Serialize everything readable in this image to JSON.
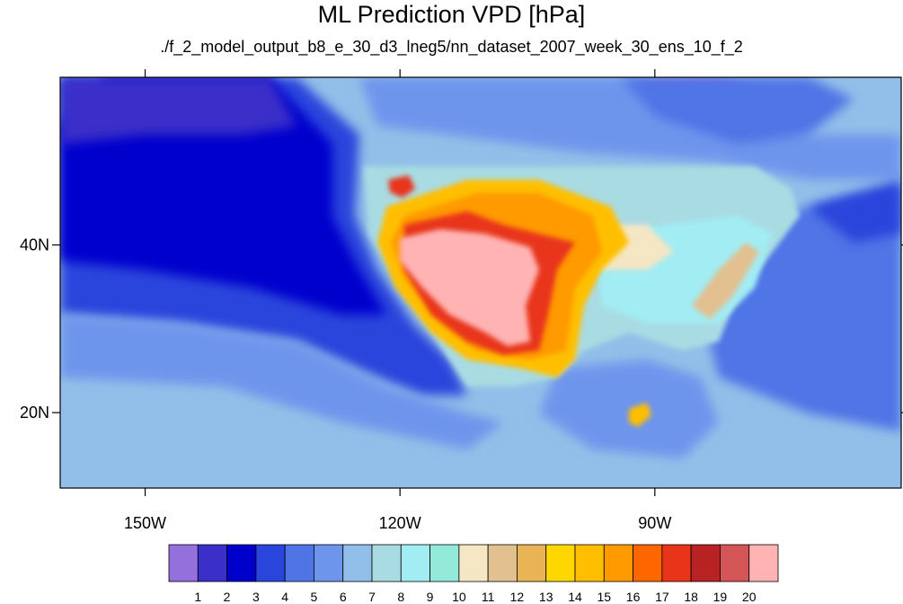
{
  "title": "ML Prediction VPD [hPa]",
  "subtitle": "./f_2_model_output_b8_e_30_d3_lneg5/nn_dataset_2007_week_30_ens_10_f_2",
  "map": {
    "lon_range": [
      -160,
      -61
    ],
    "lat_range": [
      11,
      60
    ],
    "lon_ticks": [
      {
        "value": -150,
        "label": "150W"
      },
      {
        "value": -120,
        "label": "120W"
      },
      {
        "value": -90,
        "label": "90W"
      }
    ],
    "lat_ticks": [
      {
        "value": 40,
        "label": "40N"
      },
      {
        "value": 20,
        "label": "20N"
      }
    ]
  },
  "colorbar": {
    "colors": [
      "#9370db",
      "#3b2fc9",
      "#0000cd",
      "#2a45dc",
      "#4f74e6",
      "#6e95ec",
      "#92bfe9",
      "#a9dbe3",
      "#a2ecf3",
      "#94ead9",
      "#f5e6c4",
      "#e2c08f",
      "#e8b455",
      "#ffd700",
      "#ffbf00",
      "#ff9a00",
      "#ff6600",
      "#e8351a",
      "#b82222",
      "#d45555",
      "#ffb3b3"
    ],
    "labels": [
      "1",
      "2",
      "3",
      "4",
      "5",
      "6",
      "7",
      "8",
      "9",
      "10",
      "11",
      "12",
      "13",
      "14",
      "15",
      "16",
      "17",
      "18",
      "19",
      "20"
    ]
  }
}
